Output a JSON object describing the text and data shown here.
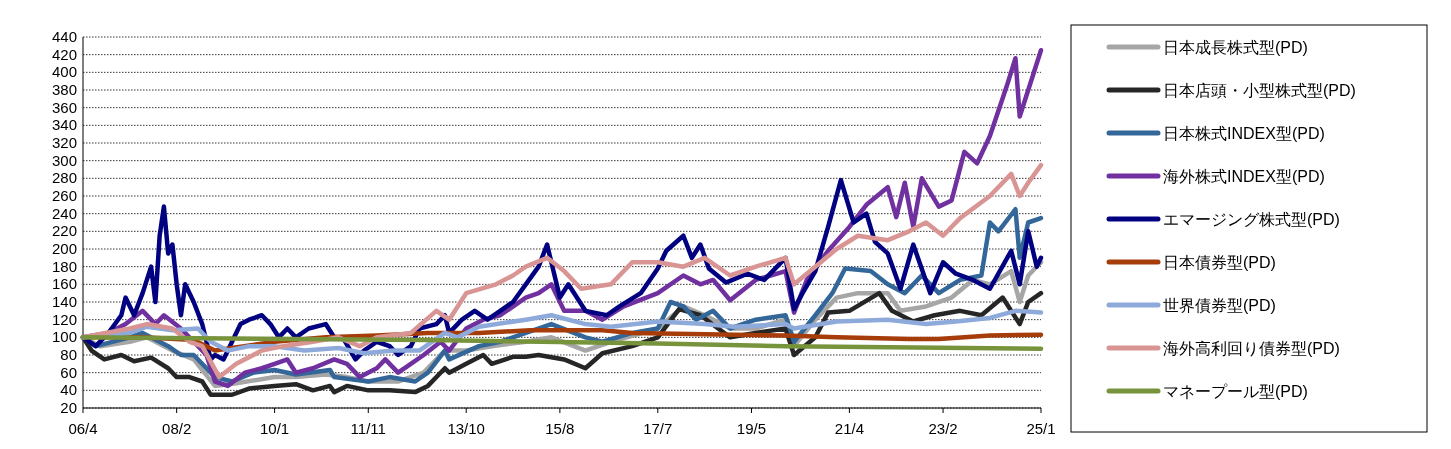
{
  "chart_data": {
    "type": "line",
    "xlim": [
      "2006-04",
      "2025-01"
    ],
    "xticks": [
      {
        "value": "2006-04",
        "label": "06/4"
      },
      {
        "value": "2008-02",
        "label": "08/2"
      },
      {
        "value": "2010-01",
        "label": "10/1"
      },
      {
        "value": "2011-11",
        "label": "11/11"
      },
      {
        "value": "2013-10",
        "label": "13/10"
      },
      {
        "value": "2015-08",
        "label": "15/8"
      },
      {
        "value": "2017-07",
        "label": "17/7"
      },
      {
        "value": "2019-05",
        "label": "19/5"
      },
      {
        "value": "2021-04",
        "label": "21/4"
      },
      {
        "value": "2023-02",
        "label": "23/2"
      },
      {
        "value": "2025-01",
        "label": "25/1"
      }
    ],
    "ylim": [
      20,
      440
    ],
    "yticks": [
      20,
      40,
      60,
      80,
      100,
      120,
      140,
      160,
      180,
      200,
      220,
      240,
      260,
      280,
      300,
      320,
      340,
      360,
      380,
      400,
      420,
      440
    ],
    "grid": "y",
    "legend": "right",
    "series": [
      {
        "name": "日本成長株式型(PD)",
        "color": "#a6a6a6",
        "x": [
          "2006-04",
          "2006-08",
          "2007-03",
          "2007-07",
          "2008-01",
          "2008-06",
          "2008-11",
          "2009-04",
          "2010-01",
          "2010-06",
          "2011-01",
          "2011-06",
          "2011-11",
          "2012-06",
          "2012-12",
          "2013-05",
          "2013-10",
          "2014-04",
          "2014-12",
          "2015-06",
          "2016-02",
          "2016-08",
          "2017-07",
          "2018-01",
          "2018-06",
          "2018-12",
          "2019-06",
          "2020-01",
          "2020-03",
          "2020-08",
          "2021-01",
          "2021-06",
          "2022-01",
          "2022-04",
          "2022-10",
          "2023-04",
          "2023-09",
          "2024-01",
          "2024-06",
          "2024-08",
          "2024-10",
          "2025-01"
        ],
        "values": [
          100,
          90,
          95,
          100,
          85,
          75,
          45,
          48,
          55,
          55,
          58,
          55,
          50,
          50,
          60,
          85,
          85,
          90,
          95,
          100,
          85,
          95,
          110,
          135,
          125,
          110,
          110,
          120,
          90,
          120,
          145,
          150,
          150,
          130,
          135,
          145,
          165,
          160,
          175,
          140,
          170,
          185
        ]
      },
      {
        "name": "日本店頭・小型株式型(PD)",
        "color": "#262626",
        "x": [
          "2006-04",
          "2006-06",
          "2006-09",
          "2007-01",
          "2007-04",
          "2007-08",
          "2007-12",
          "2008-02",
          "2008-05",
          "2008-08",
          "2008-10",
          "2009-03",
          "2009-07",
          "2010-01",
          "2010-06",
          "2010-10",
          "2011-02",
          "2011-03",
          "2011-06",
          "2011-11",
          "2012-04",
          "2012-10",
          "2013-01",
          "2013-05",
          "2013-06",
          "2013-10",
          "2014-02",
          "2014-04",
          "2014-09",
          "2014-12",
          "2015-03",
          "2015-09",
          "2016-02",
          "2016-06",
          "2017-01",
          "2017-07",
          "2017-12",
          "2018-05",
          "2018-12",
          "2019-06",
          "2020-01",
          "2020-03",
          "2020-08",
          "2020-11",
          "2021-04",
          "2021-11",
          "2022-02",
          "2022-07",
          "2022-12",
          "2023-06",
          "2023-11",
          "2024-04",
          "2024-08",
          "2024-10",
          "2025-01"
        ],
        "values": [
          100,
          85,
          75,
          80,
          73,
          77,
          65,
          55,
          55,
          50,
          35,
          35,
          42,
          45,
          47,
          40,
          45,
          38,
          45,
          40,
          40,
          38,
          45,
          65,
          60,
          70,
          80,
          70,
          78,
          78,
          80,
          75,
          65,
          82,
          90,
          100,
          132,
          125,
          100,
          105,
          110,
          80,
          100,
          128,
          130,
          150,
          130,
          118,
          125,
          130,
          125,
          145,
          115,
          140,
          150
        ]
      },
      {
        "name": "日本株式INDEX型(PD)",
        "color": "#336699",
        "x": [
          "2006-04",
          "2006-07",
          "2007-03",
          "2007-06",
          "2007-12",
          "2008-03",
          "2008-06",
          "2008-11",
          "2009-03",
          "2009-08",
          "2010-01",
          "2010-06",
          "2011-02",
          "2011-03",
          "2011-11",
          "2012-04",
          "2012-10",
          "2013-01",
          "2013-05",
          "2013-06",
          "2014-01",
          "2014-06",
          "2014-12",
          "2015-06",
          "2016-02",
          "2016-06",
          "2017-01",
          "2017-07",
          "2017-10",
          "2018-01",
          "2018-04",
          "2018-08",
          "2018-12",
          "2019-06",
          "2020-01",
          "2020-03",
          "2020-08",
          "2020-12",
          "2021-03",
          "2021-09",
          "2022-01",
          "2022-05",
          "2022-09",
          "2023-01",
          "2023-06",
          "2023-11",
          "2024-01",
          "2024-03",
          "2024-07",
          "2024-08",
          "2024-10",
          "2025-01"
        ],
        "values": [
          100,
          90,
          100,
          105,
          90,
          80,
          80,
          55,
          50,
          60,
          63,
          58,
          63,
          55,
          50,
          55,
          50,
          60,
          85,
          75,
          90,
          95,
          105,
          115,
          100,
          95,
          105,
          110,
          140,
          135,
          120,
          130,
          110,
          120,
          125,
          95,
          125,
          150,
          178,
          175,
          160,
          150,
          170,
          150,
          165,
          170,
          230,
          220,
          245,
          190,
          230,
          235
        ]
      },
      {
        "name": "海外株式INDEX型(PD)",
        "color": "#7030a0",
        "x": [
          "2006-04",
          "2006-10",
          "2007-02",
          "2007-06",
          "2007-09",
          "2007-11",
          "2008-03",
          "2008-06",
          "2008-09",
          "2008-11",
          "2009-02",
          "2009-06",
          "2009-10",
          "2010-01",
          "2010-04",
          "2010-06",
          "2010-10",
          "2011-03",
          "2011-06",
          "2011-09",
          "2012-01",
          "2012-03",
          "2012-06",
          "2012-09",
          "2012-12",
          "2013-04",
          "2013-06",
          "2013-10",
          "2014-02",
          "2014-06",
          "2014-12",
          "2015-03",
          "2015-06",
          "2015-09",
          "2016-02",
          "2016-06",
          "2016-11",
          "2017-07",
          "2018-01",
          "2018-05",
          "2018-08",
          "2018-12",
          "2019-06",
          "2020-01",
          "2020-03",
          "2020-06",
          "2020-11",
          "2021-04",
          "2021-08",
          "2022-01",
          "2022-03",
          "2022-05",
          "2022-07",
          "2022-09",
          "2023-01",
          "2023-04",
          "2023-07",
          "2023-10",
          "2024-01",
          "2024-05",
          "2024-07",
          "2024-08",
          "2024-10",
          "2024-12",
          "2025-01"
        ],
        "values": [
          100,
          105,
          115,
          130,
          115,
          125,
          110,
          95,
          80,
          50,
          45,
          60,
          65,
          70,
          75,
          60,
          65,
          75,
          70,
          55,
          65,
          75,
          60,
          70,
          80,
          95,
          85,
          110,
          120,
          125,
          145,
          150,
          160,
          130,
          130,
          120,
          135,
          150,
          170,
          160,
          165,
          142,
          165,
          175,
          128,
          165,
          198,
          225,
          250,
          270,
          236,
          275,
          225,
          280,
          248,
          255,
          310,
          297,
          328,
          385,
          416,
          350,
          380,
          410,
          425
        ]
      },
      {
        "name": "エマージング株式型(PD)",
        "color": "#000080",
        "x": [
          "2006-04",
          "2006-07",
          "2006-10",
          "2007-01",
          "2007-02",
          "2007-04",
          "2007-06",
          "2007-08",
          "2007-09",
          "2007-10",
          "2007-11",
          "2007-12",
          "2008-01",
          "2008-02",
          "2008-03",
          "2008-04",
          "2008-06",
          "2008-08",
          "2008-10",
          "2008-11",
          "2009-01",
          "2009-03",
          "2009-05",
          "2009-07",
          "2009-10",
          "2009-12",
          "2010-02",
          "2010-04",
          "2010-06",
          "2010-09",
          "2011-01",
          "2011-03",
          "2011-05",
          "2011-08",
          "2011-10",
          "2012-01",
          "2012-04",
          "2012-06",
          "2012-09",
          "2012-11",
          "2013-03",
          "2013-05",
          "2013-06",
          "2013-09",
          "2013-12",
          "2014-03",
          "2014-06",
          "2014-09",
          "2014-12",
          "2015-03",
          "2015-05",
          "2015-08",
          "2015-10",
          "2016-02",
          "2016-07",
          "2016-10",
          "2017-03",
          "2017-07",
          "2017-09",
          "2018-01",
          "2018-03",
          "2018-05",
          "2018-07",
          "2018-11",
          "2019-04",
          "2019-08",
          "2020-01",
          "2020-03",
          "2020-05",
          "2020-08",
          "2020-11",
          "2021-02",
          "2021-05",
          "2021-08",
          "2021-10",
          "2022-01",
          "2022-04",
          "2022-07",
          "2022-11",
          "2023-02",
          "2023-05",
          "2023-09",
          "2024-01",
          "2024-06",
          "2024-08",
          "2024-10",
          "2024-12",
          "2025-01"
        ],
        "values": [
          100,
          90,
          105,
          125,
          145,
          125,
          150,
          180,
          140,
          215,
          248,
          195,
          205,
          160,
          125,
          160,
          140,
          115,
          75,
          80,
          75,
          95,
          115,
          120,
          125,
          115,
          100,
          110,
          100,
          110,
          115,
          100,
          100,
          75,
          85,
          95,
          90,
          80,
          90,
          110,
          115,
          125,
          105,
          120,
          130,
          120,
          130,
          140,
          160,
          180,
          205,
          145,
          160,
          130,
          125,
          135,
          150,
          178,
          198,
          215,
          190,
          205,
          178,
          162,
          172,
          165,
          190,
          132,
          150,
          175,
          225,
          278,
          230,
          240,
          208,
          195,
          155,
          205,
          150,
          185,
          172,
          165,
          155,
          198,
          160,
          220,
          180,
          190
        ]
      },
      {
        "name": "日本債券型(PD)",
        "color": "#a63c0a",
        "x": [
          "2006-04",
          "2007-06",
          "2008-06",
          "2008-11",
          "2009-03",
          "2010-01",
          "2011-01",
          "2012-01",
          "2013-01",
          "2014-01",
          "2015-01",
          "2016-06",
          "2017-01",
          "2019-01",
          "2020-01",
          "2021-01",
          "2022-06",
          "2023-01",
          "2024-01",
          "2025-01"
        ],
        "values": [
          100,
          100,
          97,
          85,
          88,
          95,
          100,
          102,
          105,
          105,
          108,
          108,
          105,
          103,
          102,
          100,
          98,
          98,
          102,
          103
        ]
      },
      {
        "name": "世界債券型(PD)",
        "color": "#8eaadb",
        "x": [
          "2006-04",
          "2007-03",
          "2007-07",
          "2008-01",
          "2008-07",
          "2008-10",
          "2009-02",
          "2009-07",
          "2010-01",
          "2010-08",
          "2011-04",
          "2011-10",
          "2012-05",
          "2012-11",
          "2013-05",
          "2013-08",
          "2014-01",
          "2014-12",
          "2015-06",
          "2016-02",
          "2016-08",
          "2017-07",
          "2018-06",
          "2019-01",
          "2020-01",
          "2020-03",
          "2021-01",
          "2022-01",
          "2022-10",
          "2023-05",
          "2024-01",
          "2024-07",
          "2025-01"
        ],
        "values": [
          100,
          105,
          112,
          108,
          110,
          95,
          85,
          90,
          90,
          85,
          88,
          82,
          85,
          85,
          105,
          100,
          112,
          120,
          125,
          115,
          112,
          118,
          115,
          112,
          115,
          110,
          118,
          120,
          115,
          118,
          122,
          130,
          128
        ]
      },
      {
        "name": "海外高利回り債券型(PD)",
        "color": "#d99594",
        "x": [
          "2006-04",
          "2007-03",
          "2007-07",
          "2008-01",
          "2008-05",
          "2008-08",
          "2008-12",
          "2009-04",
          "2009-10",
          "2010-03",
          "2010-10",
          "2011-04",
          "2011-09",
          "2012-01",
          "2012-09",
          "2013-03",
          "2013-06",
          "2013-10",
          "2014-05",
          "2014-09",
          "2014-12",
          "2015-05",
          "2015-09",
          "2016-01",
          "2016-08",
          "2017-01",
          "2017-07",
          "2018-01",
          "2018-06",
          "2018-12",
          "2019-06",
          "2020-01",
          "2020-03",
          "2020-08",
          "2021-01",
          "2021-06",
          "2022-01",
          "2022-06",
          "2022-10",
          "2023-02",
          "2023-06",
          "2024-01",
          "2024-06",
          "2024-08",
          "2024-10",
          "2025-01"
        ],
        "values": [
          100,
          110,
          115,
          110,
          95,
          90,
          55,
          70,
          85,
          90,
          95,
          100,
          90,
          100,
          105,
          130,
          120,
          150,
          160,
          170,
          180,
          190,
          175,
          155,
          160,
          185,
          185,
          180,
          190,
          170,
          180,
          190,
          160,
          180,
          200,
          215,
          210,
          220,
          230,
          215,
          235,
          260,
          285,
          260,
          275,
          295
        ]
      },
      {
        "name": "マネープール型(PD)",
        "color": "#77933c",
        "x": [
          "2006-04",
          "2013-01",
          "2017-07",
          "2020-01",
          "2025-01"
        ],
        "values": [
          100,
          97,
          93,
          90,
          87
        ]
      }
    ]
  }
}
